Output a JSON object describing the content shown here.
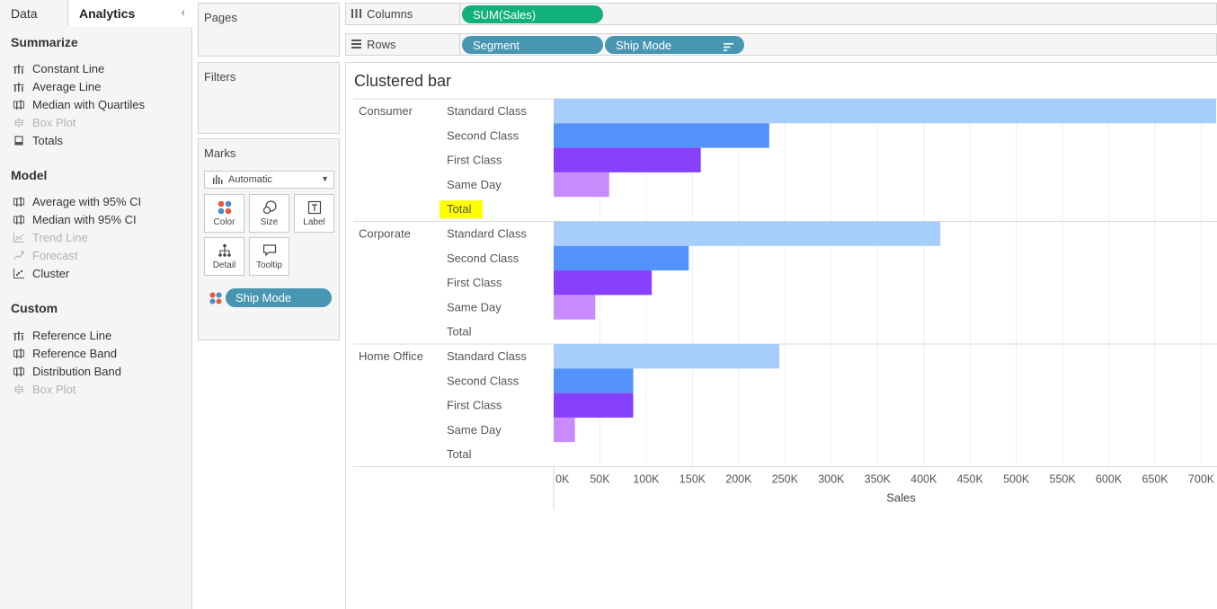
{
  "left_pane": {
    "tabs": {
      "data": "Data",
      "analytics": "Analytics"
    },
    "sections": [
      {
        "title": "Summarize",
        "items": [
          {
            "label": "Constant Line",
            "icon": "reference-line-icon",
            "disabled": false
          },
          {
            "label": "Average Line",
            "icon": "reference-line-icon",
            "disabled": false
          },
          {
            "label": "Median with Quartiles",
            "icon": "band-icon",
            "disabled": false
          },
          {
            "label": "Box Plot",
            "icon": "box-plot-icon",
            "disabled": true
          },
          {
            "label": "Totals",
            "icon": "totals-icon",
            "disabled": false
          }
        ]
      },
      {
        "title": "Model",
        "items": [
          {
            "label": "Average with 95% CI",
            "icon": "band-icon",
            "disabled": false
          },
          {
            "label": "Median with 95% CI",
            "icon": "band-icon",
            "disabled": false
          },
          {
            "label": "Trend Line",
            "icon": "trend-line-icon",
            "disabled": true
          },
          {
            "label": "Forecast",
            "icon": "forecast-icon",
            "disabled": true
          },
          {
            "label": "Cluster",
            "icon": "cluster-icon",
            "disabled": false
          }
        ]
      },
      {
        "title": "Custom",
        "items": [
          {
            "label": "Reference Line",
            "icon": "reference-line-icon",
            "disabled": false
          },
          {
            "label": "Reference Band",
            "icon": "band-icon",
            "disabled": false
          },
          {
            "label": "Distribution Band",
            "icon": "band-icon",
            "disabled": false
          },
          {
            "label": "Box Plot",
            "icon": "box-plot-icon",
            "disabled": true
          }
        ]
      }
    ]
  },
  "cards": {
    "pages": "Pages",
    "filters": "Filters",
    "marks": {
      "title": "Marks",
      "type": "Automatic",
      "buttons": {
        "color": "Color",
        "size": "Size",
        "label": "Label",
        "detail": "Detail",
        "tooltip": "Tooltip"
      },
      "color_pill": "Ship Mode"
    }
  },
  "shelves": {
    "columns": {
      "label": "Columns",
      "pills": [
        "SUM(Sales)"
      ]
    },
    "rows": {
      "label": "Rows",
      "pills": [
        "Segment",
        "Ship Mode"
      ]
    }
  },
  "colors": {
    "standard_class": "#a7cdfd",
    "second_class": "#5391fb",
    "first_class": "#8740fc",
    "same_day": "#c88bfc",
    "highlight": "#ffff00",
    "pill_green": "#13b17a",
    "pill_blue": "#4996b2"
  },
  "chart_data": {
    "type": "bar",
    "orientation": "horizontal",
    "title": "Clustered bar",
    "xlabel": "Sales",
    "ylabel": "",
    "xlim": [
      0,
      720000
    ],
    "x_ticks": [
      "0K",
      "50K",
      "100K",
      "150K",
      "200K",
      "250K",
      "300K",
      "350K",
      "400K",
      "450K",
      "500K",
      "550K",
      "600K",
      "650K",
      "700K"
    ],
    "x_tick_values": [
      0,
      50000,
      100000,
      150000,
      200000,
      250000,
      300000,
      350000,
      400000,
      450000,
      500000,
      550000,
      600000,
      650000,
      700000
    ],
    "grid": true,
    "groups": [
      {
        "segment": "Consumer",
        "rows": [
          {
            "label": "Standard Class",
            "value": 716000
          },
          {
            "label": "Second Class",
            "value": 233000
          },
          {
            "label": "First Class",
            "value": 159000
          },
          {
            "label": "Same Day",
            "value": 60000
          },
          {
            "label": "Total",
            "value": null,
            "highlighted": true
          }
        ]
      },
      {
        "segment": "Corporate",
        "rows": [
          {
            "label": "Standard Class",
            "value": 418000
          },
          {
            "label": "Second Class",
            "value": 146000
          },
          {
            "label": "First Class",
            "value": 106000
          },
          {
            "label": "Same Day",
            "value": 45000
          },
          {
            "label": "Total",
            "value": null,
            "highlighted": false
          }
        ]
      },
      {
        "segment": "Home Office",
        "rows": [
          {
            "label": "Standard Class",
            "value": 244000
          },
          {
            "label": "Second Class",
            "value": 86000
          },
          {
            "label": "First Class",
            "value": 86000
          },
          {
            "label": "Same Day",
            "value": 23000
          },
          {
            "label": "Total",
            "value": null,
            "highlighted": false
          }
        ]
      }
    ]
  }
}
